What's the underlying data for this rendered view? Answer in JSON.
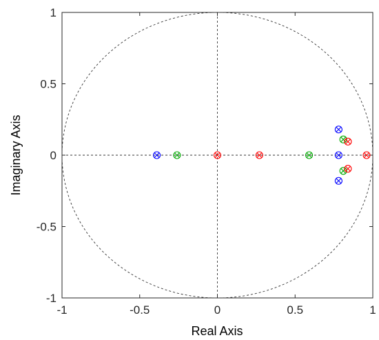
{
  "chart_data": {
    "type": "scatter",
    "title": "",
    "xlabel": "Real Axis",
    "ylabel": "Imaginary Axis",
    "xlim": [
      -1,
      1
    ],
    "ylim": [
      -1,
      1
    ],
    "xticks": [
      -1,
      -0.5,
      0,
      0.5,
      1
    ],
    "xtick_labels": [
      "-1",
      "-0.5",
      "0",
      "0.5",
      "1"
    ],
    "yticks": [
      -1,
      -0.5,
      0,
      0.5,
      1
    ],
    "ytick_labels": [
      "-1",
      "-0.5",
      "0",
      "0.5",
      "1"
    ],
    "grid": false,
    "unit_circle": true,
    "axes_lines": true,
    "marker": "circle-x",
    "series": [
      {
        "color": "#0000ff",
        "points": [
          [
            -0.39,
            0
          ],
          [
            0.78,
            0.18
          ],
          [
            0.78,
            0
          ],
          [
            0.78,
            -0.18
          ]
        ]
      },
      {
        "color": "#00aa00",
        "points": [
          [
            -0.26,
            0
          ],
          [
            0.59,
            0
          ],
          [
            0.81,
            0.11
          ],
          [
            0.81,
            -0.11
          ]
        ]
      },
      {
        "color": "#ff0000",
        "points": [
          [
            0,
            0
          ],
          [
            0.27,
            0
          ],
          [
            0.84,
            0.095
          ],
          [
            0.84,
            -0.095
          ],
          [
            0.96,
            0
          ]
        ]
      }
    ]
  }
}
